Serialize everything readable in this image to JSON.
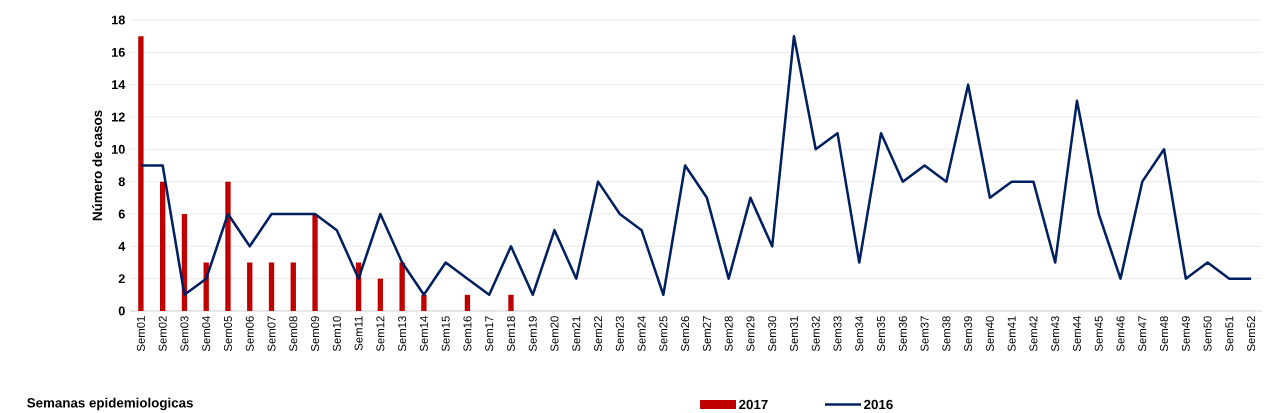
{
  "chart_data": {
    "type": "bar",
    "xlabel": "Semanas epidemiologicas",
    "ylabel": "Número de casos",
    "categories": [
      "Sem01",
      "Sem02",
      "Sem03",
      "Sem04",
      "Sem05",
      "Sem06",
      "Sem07",
      "Sem08",
      "Sem09",
      "Sem10",
      "Sem11",
      "Sem12",
      "Sem13",
      "Sem14",
      "Sem15",
      "Sem16",
      "Sem17",
      "Sem18",
      "Sem19",
      "Sem20",
      "Sem21",
      "Sem22",
      "Sem23",
      "Sem24",
      "Sem25",
      "Sem26",
      "Sem27",
      "Sem28",
      "Sem29",
      "Sem30",
      "Sem31",
      "Sem32",
      "Sem33",
      "Sem34",
      "Sem35",
      "Sem36",
      "Sem37",
      "Sem38",
      "Sem39",
      "Sem40",
      "Sem41",
      "Sem42",
      "Sem43",
      "Sem44",
      "Sem45",
      "Sem46",
      "Sem47",
      "Sem48",
      "Sem49",
      "Sem50",
      "Sem51",
      "Sem52"
    ],
    "series": [
      {
        "name": "2017",
        "color": "#c00000",
        "values": [
          17,
          8,
          6,
          3,
          8,
          3,
          3,
          3,
          6,
          null,
          3,
          2,
          3,
          1,
          null,
          1,
          null,
          1,
          null,
          null,
          null,
          null,
          null,
          null,
          null,
          null,
          null,
          null,
          null,
          null,
          null,
          null,
          null,
          null,
          null,
          null,
          null,
          null,
          null,
          null,
          null,
          null,
          null,
          null,
          null,
          null,
          null,
          null,
          null,
          null,
          null,
          null
        ]
      },
      {
        "name": "2016",
        "type": "line",
        "color": "#002060",
        "values": [
          9,
          9,
          1,
          2,
          6,
          4,
          6,
          6,
          6,
          5,
          2,
          6,
          3,
          1,
          3,
          2,
          1,
          4,
          1,
          5,
          2,
          8,
          6,
          5,
          1,
          9,
          7,
          2,
          7,
          4,
          17,
          10,
          11,
          3,
          11,
          8,
          9,
          8,
          14,
          7,
          8,
          8,
          3,
          13,
          6,
          2,
          8,
          10,
          2,
          3,
          2,
          2
        ]
      }
    ],
    "ylim": [
      0,
      18
    ],
    "yticks": [
      0,
      2,
      4,
      6,
      8,
      10,
      12,
      14,
      16,
      18
    ],
    "grid": "y",
    "legend": "bottom"
  }
}
